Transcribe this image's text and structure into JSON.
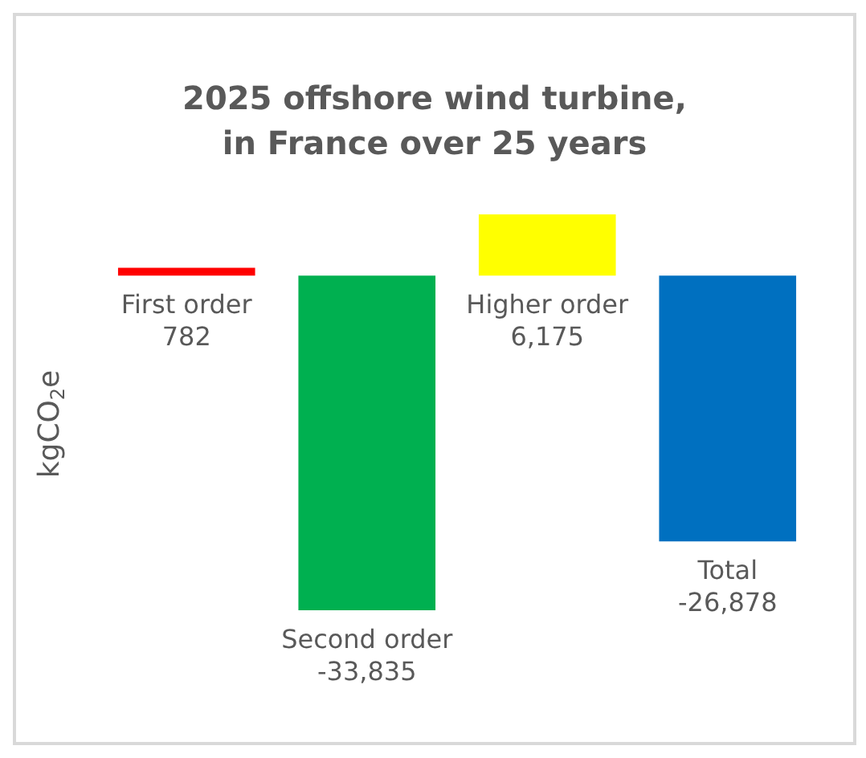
{
  "chart_data": {
    "type": "bar",
    "title": "2025 offshore wind turbine,\nin France over 25 years",
    "ylabel": "kgCO$_{2}$e",
    "categories": [
      "First order",
      "Second order",
      "Higher order",
      "Total"
    ],
    "values": [
      782,
      -33835,
      6175,
      -26878
    ],
    "colors": [
      "#ff0000",
      "#00b050",
      "#ffff00",
      "#0070c0"
    ],
    "value_labels": [
      "782",
      "-33,835",
      "6,175",
      "-26,878"
    ]
  }
}
